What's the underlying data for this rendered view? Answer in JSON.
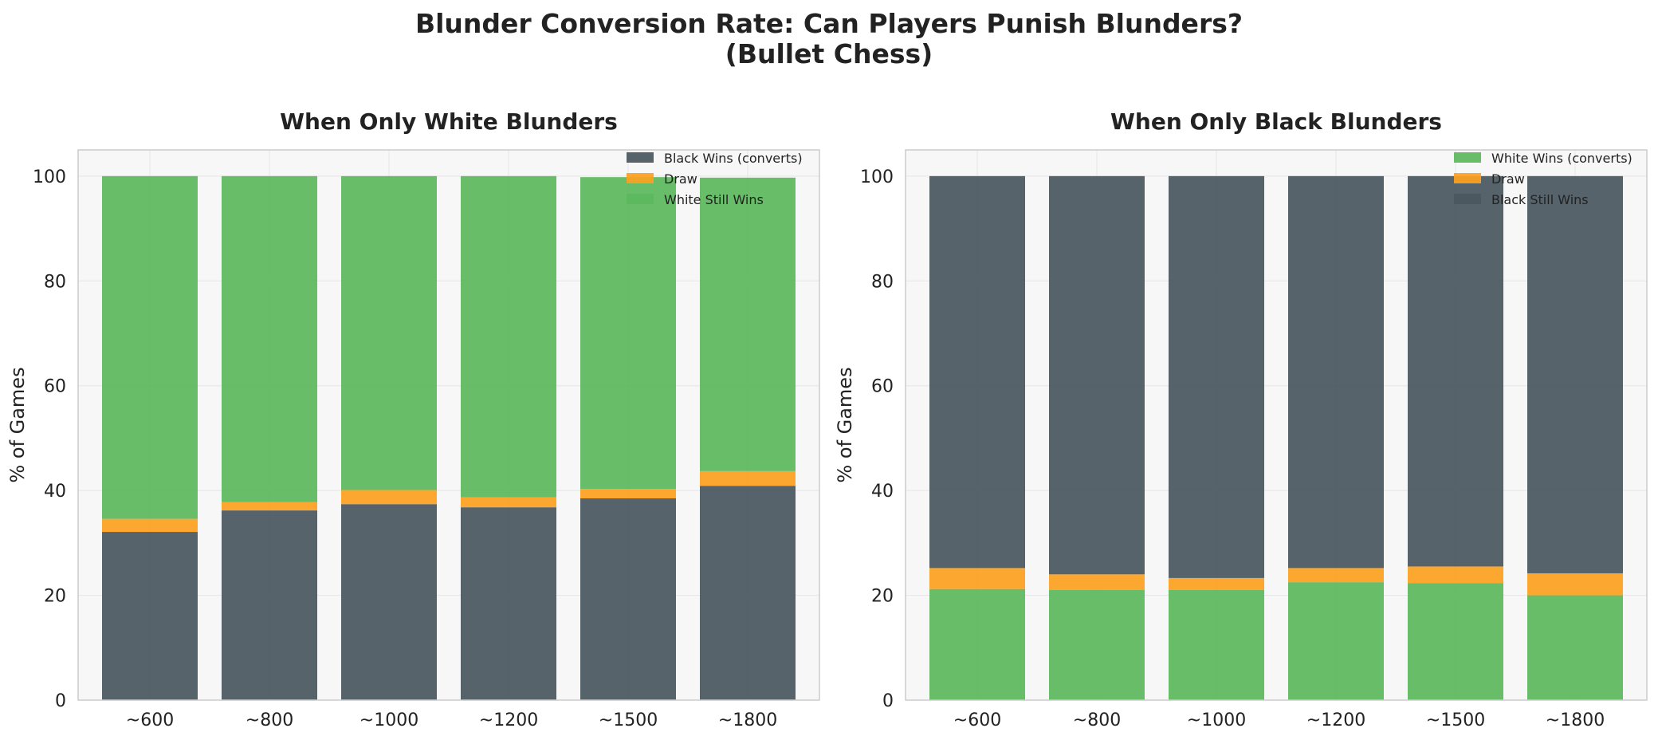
{
  "figure": {
    "suptitle_line1": "Blunder Conversion Rate: Can Players Punish Blunders?",
    "suptitle_line2": "(Bullet Chess)"
  },
  "colors": {
    "dark": "#4a575f",
    "draw": "#fca020",
    "green": "#5cb85c",
    "plot_bg": "#f7f7f7",
    "grid": "#e6e6e6",
    "spine": "#cccccc",
    "text": "#222222"
  },
  "chart_data": [
    {
      "type": "bar",
      "stacked": true,
      "title": "When Only White Blunders",
      "ylabel": "% of Games",
      "xlabel": "",
      "categories": [
        "~600",
        "~800",
        "~1000",
        "~1200",
        "~1500",
        "~1800"
      ],
      "ylim": [
        0,
        105
      ],
      "yticks": [
        0,
        20,
        40,
        60,
        80,
        100
      ],
      "grid": true,
      "legend_position": "top-right",
      "series": [
        {
          "name": "Black Wins (converts)",
          "color_key": "dark",
          "values": [
            32.1,
            36.2,
            37.4,
            36.8,
            38.5,
            40.9
          ]
        },
        {
          "name": "Draw",
          "color_key": "draw",
          "values": [
            2.5,
            1.6,
            2.7,
            1.9,
            1.8,
            2.8
          ]
        },
        {
          "name": "White Still Wins",
          "color_key": "green",
          "values": [
            65.4,
            62.2,
            59.9,
            61.3,
            59.5,
            56.0
          ]
        }
      ]
    },
    {
      "type": "bar",
      "stacked": true,
      "title": "When Only Black Blunders",
      "ylabel": "% of Games",
      "xlabel": "",
      "categories": [
        "~600",
        "~800",
        "~1000",
        "~1200",
        "~1500",
        "~1800"
      ],
      "ylim": [
        0,
        105
      ],
      "yticks": [
        0,
        20,
        40,
        60,
        80,
        100
      ],
      "grid": true,
      "legend_position": "top-right",
      "series": [
        {
          "name": "White Wins (converts)",
          "color_key": "green",
          "values": [
            21.2,
            21.0,
            21.0,
            22.5,
            22.3,
            20.0
          ]
        },
        {
          "name": "Draw",
          "color_key": "draw",
          "values": [
            4.0,
            3.0,
            2.3,
            2.7,
            3.2,
            4.2
          ]
        },
        {
          "name": "Black Still Wins",
          "color_key": "dark",
          "values": [
            74.8,
            76.0,
            76.7,
            74.8,
            74.5,
            75.8
          ]
        }
      ]
    }
  ]
}
